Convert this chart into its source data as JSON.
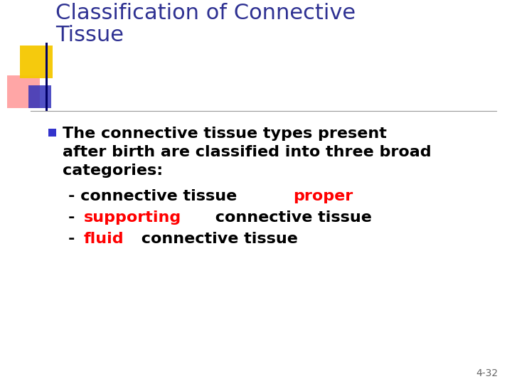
{
  "title_line1": "Classification of Connective",
  "title_line2": "Tissue",
  "title_color": "#2E3192",
  "bg_color": "#FFFFFF",
  "bullet_color": "#3333CC",
  "body_text_color": "#000000",
  "red_color": "#FF0000",
  "separator_color": "#999999",
  "slide_number": "4-32",
  "slide_number_color": "#666666",
  "bullet_text_lines": [
    "The connective tissue types present",
    "after birth are classified into three broad",
    "categories:"
  ],
  "sub_lines": [
    {
      "prefix": "- connective tissue ",
      "highlight": "proper",
      "suffix": ""
    },
    {
      "prefix": "- ",
      "highlight": "supporting",
      "suffix": " connective tissue"
    },
    {
      "prefix": "- ",
      "highlight": "fluid",
      "suffix": " connective tissue"
    }
  ],
  "logo": {
    "yellow": "#F5C800",
    "pink": "#FF8888",
    "blue_rect": "#3333BB",
    "blue_bar": "#000066"
  },
  "title_fontsize": 22,
  "body_fontsize": 16,
  "sub_fontsize": 16
}
